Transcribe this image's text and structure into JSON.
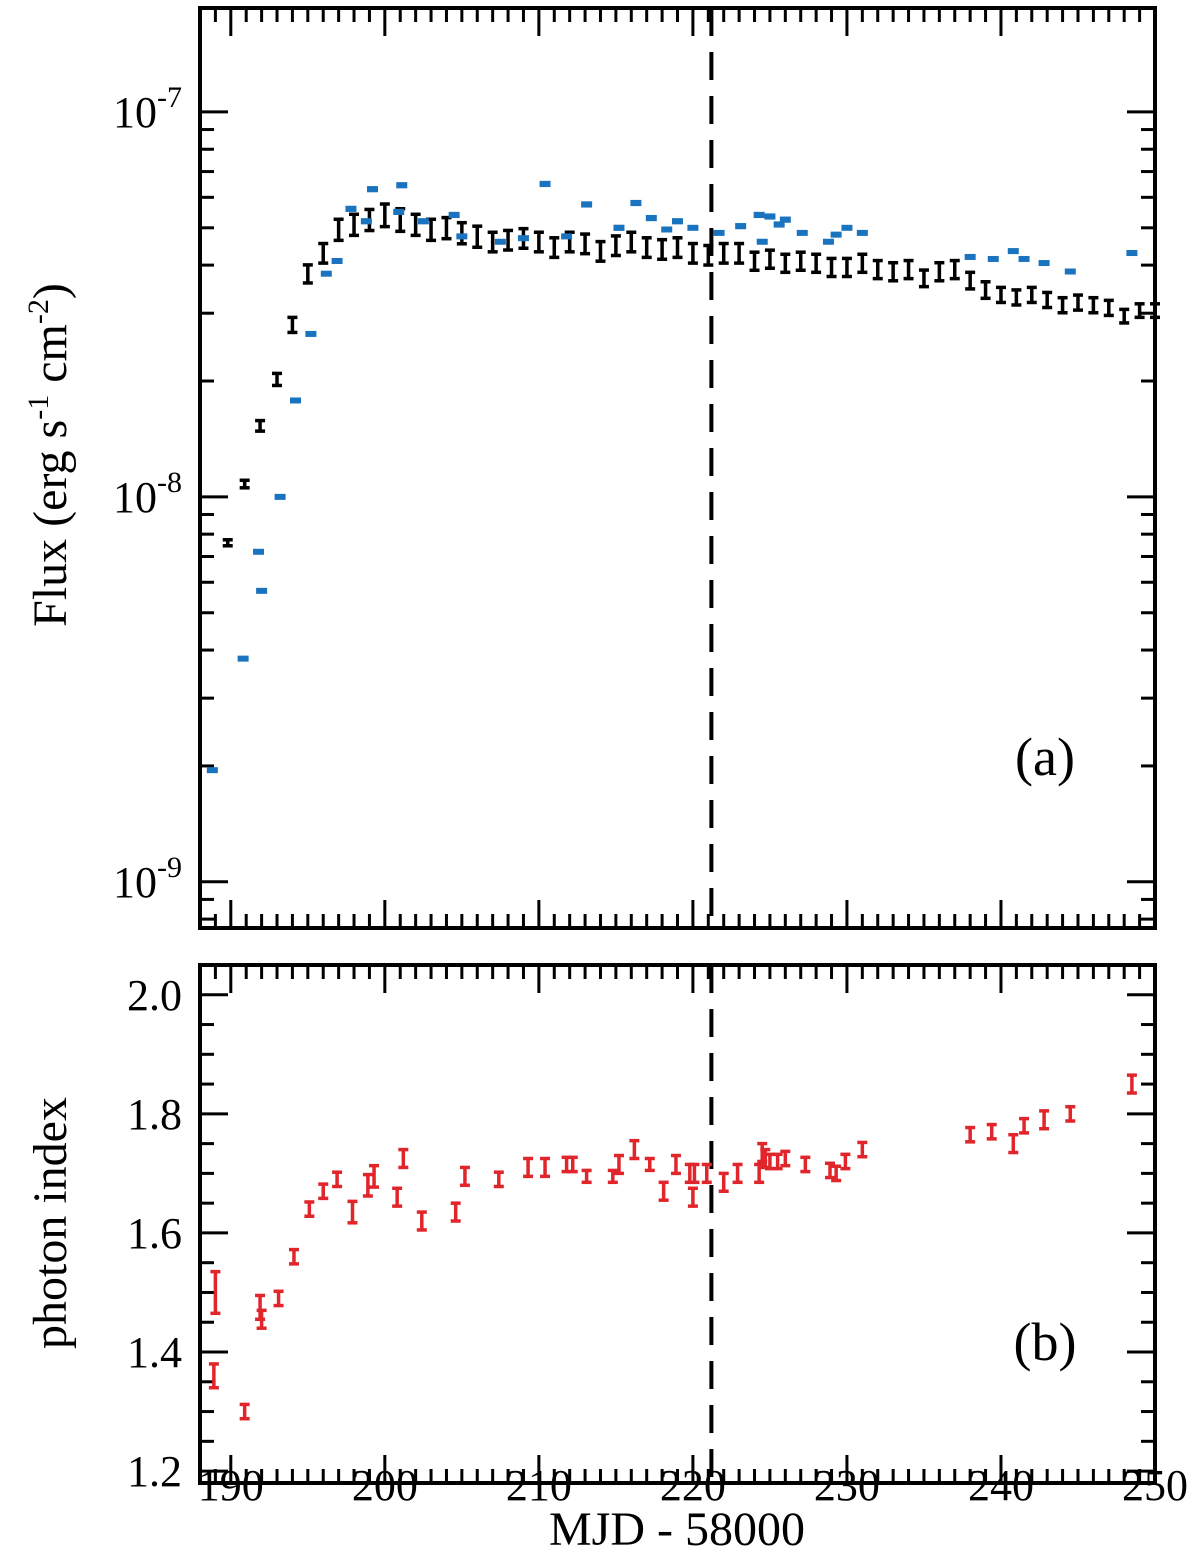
{
  "chart_data": [
    {
      "type": "scatter",
      "panel_label": "(a)",
      "ylabel": {
        "prefix": "Flux (erg s",
        "exp1": "-1",
        "mid": " cm",
        "exp2": "-2",
        "suffix": ")"
      },
      "yscale": "log",
      "xlim": [
        188,
        250
      ],
      "ylim_exp": [
        -9.12,
        -6.73
      ],
      "yticks": [
        {
          "exp": -9,
          "base": "10",
          "sup": "-9"
        },
        {
          "exp": -8,
          "base": "10",
          "sup": "-8"
        },
        {
          "exp": -7,
          "base": "10",
          "sup": "-7"
        }
      ],
      "vline_x": 221.2,
      "series": [
        {
          "name": "black",
          "color": "#000000",
          "points": [
            [
              189.8,
              7.6e-09,
              0.4
            ],
            [
              190.9,
              1.08e-08,
              0.5
            ],
            [
              191.9,
              1.53e-08,
              0.7
            ],
            [
              193.0,
              2.02e-08,
              0.8
            ],
            [
              194.0,
              2.8e-08,
              1.0
            ],
            [
              195.0,
              3.8e-08,
              1.2
            ],
            [
              196.0,
              4.3e-08,
              1.3
            ],
            [
              197.0,
              4.95e-08,
              1.4
            ],
            [
              198.0,
              5.1e-08,
              1.4
            ],
            [
              199.0,
              5.25e-08,
              1.4
            ],
            [
              200.0,
              5.4e-08,
              1.5
            ],
            [
              201.0,
              5.25e-08,
              1.5
            ],
            [
              202.0,
              5.1e-08,
              1.4
            ],
            [
              203.0,
              4.95e-08,
              1.4
            ],
            [
              204.0,
              5e-08,
              1.4
            ],
            [
              205.0,
              4.85e-08,
              1.4
            ],
            [
              206.0,
              4.75e-08,
              1.4
            ],
            [
              207.0,
              4.6e-08,
              1.3
            ],
            [
              208.0,
              4.65e-08,
              1.3
            ],
            [
              209.0,
              4.7e-08,
              1.3
            ],
            [
              210.0,
              4.6e-08,
              1.3
            ],
            [
              211.0,
              4.45e-08,
              1.3
            ],
            [
              212.0,
              4.6e-08,
              1.3
            ],
            [
              213.0,
              4.55e-08,
              1.3
            ],
            [
              214.0,
              4.35e-08,
              1.3
            ],
            [
              215.0,
              4.5e-08,
              1.3
            ],
            [
              216.0,
              4.6e-08,
              1.3
            ],
            [
              217.0,
              4.45e-08,
              1.3
            ],
            [
              218.0,
              4.4e-08,
              1.3
            ],
            [
              219.0,
              4.45e-08,
              1.3
            ],
            [
              220.0,
              4.3e-08,
              1.3
            ],
            [
              221.0,
              4.25e-08,
              1.3
            ],
            [
              222.0,
              4.3e-08,
              1.3
            ],
            [
              223.0,
              4.3e-08,
              1.3
            ],
            [
              224.0,
              4.1e-08,
              1.2
            ],
            [
              225.0,
              4.15e-08,
              1.2
            ],
            [
              226.0,
              4.05e-08,
              1.2
            ],
            [
              227.0,
              4.1e-08,
              1.2
            ],
            [
              228.0,
              4.05e-08,
              1.2
            ],
            [
              229.0,
              3.95e-08,
              1.2
            ],
            [
              230.0,
              3.95e-08,
              1.2
            ],
            [
              231.0,
              4.05e-08,
              1.2
            ],
            [
              232.0,
              3.9e-08,
              1.2
            ],
            [
              233.0,
              3.85e-08,
              1.2
            ],
            [
              234.0,
              3.9e-08,
              1.2
            ],
            [
              235.0,
              3.7e-08,
              1.1
            ],
            [
              236.0,
              3.85e-08,
              1.2
            ],
            [
              237.0,
              3.9e-08,
              1.2
            ],
            [
              238.0,
              3.65e-08,
              1.1
            ],
            [
              239.0,
              3.45e-08,
              1.1
            ],
            [
              240.0,
              3.35e-08,
              1.0
            ],
            [
              241.0,
              3.3e-08,
              1.0
            ],
            [
              242.0,
              3.35e-08,
              1.0
            ],
            [
              243.0,
              3.25e-08,
              1.0
            ],
            [
              244.0,
              3.15e-08,
              1.0
            ],
            [
              245.0,
              3.2e-08,
              1.0
            ],
            [
              246.0,
              3.15e-08,
              1.0
            ],
            [
              247.0,
              3.1e-08,
              1.0
            ],
            [
              248.0,
              2.95e-08,
              0.9
            ],
            [
              249.0,
              3.05e-08,
              0.9
            ],
            [
              250.0,
              3.05e-08,
              0.9
            ]
          ]
        },
        {
          "name": "blue",
          "color": "#1a73bf",
          "points": [
            [
              188.8,
              1.95e-09,
              0.05
            ],
            [
              190.8,
              3.8e-09,
              0.04
            ],
            [
              191.8,
              7.2e-09,
              0.07
            ],
            [
              192.0,
              5.7e-09,
              0.15
            ],
            [
              193.2,
              1e-08,
              0.08
            ],
            [
              194.2,
              1.78e-08,
              0.15
            ],
            [
              195.2,
              2.65e-08,
              0.2
            ],
            [
              196.2,
              3.8e-08,
              0.3
            ],
            [
              196.9,
              4.1e-08,
              0.3
            ],
            [
              197.8,
              5.6e-08,
              0.4
            ],
            [
              198.8,
              5.2e-08,
              0.4
            ],
            [
              199.2,
              6.3e-08,
              0.4
            ],
            [
              200.9,
              5.5e-08,
              0.4
            ],
            [
              201.1,
              6.45e-08,
              0.4
            ],
            [
              202.5,
              5.2e-08,
              0.4
            ],
            [
              204.5,
              5.4e-08,
              0.4
            ],
            [
              205.0,
              4.75e-08,
              0.35
            ],
            [
              207.5,
              4.6e-08,
              0.35
            ],
            [
              209.0,
              4.7e-08,
              0.35
            ],
            [
              210.4,
              6.5e-08,
              0.4
            ],
            [
              211.8,
              4.75e-08,
              0.35
            ],
            [
              213.1,
              5.75e-08,
              0.4
            ],
            [
              215.2,
              5e-08,
              0.4
            ],
            [
              216.3,
              5.8e-08,
              0.4
            ],
            [
              217.3,
              5.3e-08,
              0.4
            ],
            [
              218.3,
              4.95e-08,
              0.35
            ],
            [
              219.0,
              5.2e-08,
              0.4
            ],
            [
              220.0,
              5e-08,
              0.35
            ],
            [
              221.7,
              4.85e-08,
              0.35
            ],
            [
              223.1,
              5.05e-08,
              0.4
            ],
            [
              224.3,
              5.4e-08,
              0.4
            ],
            [
              224.5,
              4.6e-08,
              0.35
            ],
            [
              225.0,
              5.35e-08,
              0.4
            ],
            [
              225.6,
              5.1e-08,
              0.4
            ],
            [
              226.0,
              5.25e-08,
              0.4
            ],
            [
              227.1,
              4.85e-08,
              0.35
            ],
            [
              228.8,
              4.6e-08,
              0.35
            ],
            [
              229.3,
              4.8e-08,
              0.35
            ],
            [
              230.0,
              5e-08,
              0.35
            ],
            [
              231.0,
              4.85e-08,
              0.35
            ],
            [
              238.0,
              4.2e-08,
              0.3
            ],
            [
              239.5,
              4.15e-08,
              0.3
            ],
            [
              240.8,
              4.35e-08,
              0.3
            ],
            [
              241.5,
              4.15e-08,
              0.3
            ],
            [
              242.8,
              4.05e-08,
              0.3
            ],
            [
              244.5,
              3.85e-08,
              0.3
            ],
            [
              248.5,
              4.3e-08,
              0.3
            ]
          ]
        }
      ]
    },
    {
      "type": "scatter",
      "panel_label": "(b)",
      "ylabel": "photon index",
      "xlabel": "MJD - 58000",
      "xlim": [
        188,
        250
      ],
      "ylim": [
        1.18,
        2.05
      ],
      "xticks": [
        "190",
        "200",
        "210",
        "220",
        "230",
        "240",
        "250"
      ],
      "xtick_values": [
        190,
        200,
        210,
        220,
        230,
        240,
        250
      ],
      "yticks": [
        "1.2",
        "1.4",
        "1.6",
        "1.8",
        "2.0"
      ],
      "ytick_values": [
        1.2,
        1.4,
        1.6,
        1.8,
        2.0
      ],
      "vline_x": 221.2,
      "series": [
        {
          "name": "red",
          "color": "#e0252b",
          "points": [
            [
              188.9,
              1.36,
              0.02
            ],
            [
              189.0,
              1.5,
              0.035
            ],
            [
              190.9,
              1.3,
              0.012
            ],
            [
              191.9,
              1.475,
              0.02
            ],
            [
              192.0,
              1.455,
              0.015
            ],
            [
              193.1,
              1.49,
              0.012
            ],
            [
              194.1,
              1.56,
              0.012
            ],
            [
              195.1,
              1.64,
              0.012
            ],
            [
              196.0,
              1.67,
              0.012
            ],
            [
              196.9,
              1.69,
              0.012
            ],
            [
              197.9,
              1.635,
              0.018
            ],
            [
              198.9,
              1.68,
              0.018
            ],
            [
              199.3,
              1.695,
              0.018
            ],
            [
              200.8,
              1.66,
              0.015
            ],
            [
              201.2,
              1.725,
              0.015
            ],
            [
              202.4,
              1.62,
              0.015
            ],
            [
              204.6,
              1.635,
              0.015
            ],
            [
              205.2,
              1.695,
              0.015
            ],
            [
              207.4,
              1.69,
              0.012
            ],
            [
              209.3,
              1.71,
              0.015
            ],
            [
              210.4,
              1.71,
              0.015
            ],
            [
              211.8,
              1.715,
              0.012
            ],
            [
              212.2,
              1.715,
              0.012
            ],
            [
              213.1,
              1.695,
              0.01
            ],
            [
              214.8,
              1.695,
              0.01
            ],
            [
              215.2,
              1.715,
              0.015
            ],
            [
              216.2,
              1.74,
              0.015
            ],
            [
              217.2,
              1.715,
              0.01
            ],
            [
              218.1,
              1.67,
              0.015
            ],
            [
              218.9,
              1.715,
              0.015
            ],
            [
              219.8,
              1.7,
              0.015
            ],
            [
              220.0,
              1.66,
              0.015
            ],
            [
              220.1,
              1.7,
              0.015
            ],
            [
              220.9,
              1.7,
              0.015
            ],
            [
              222.0,
              1.685,
              0.015
            ],
            [
              222.9,
              1.7,
              0.015
            ],
            [
              224.3,
              1.7,
              0.015
            ],
            [
              224.5,
              1.735,
              0.015
            ],
            [
              224.7,
              1.725,
              0.015
            ],
            [
              225.0,
              1.72,
              0.012
            ],
            [
              225.5,
              1.72,
              0.012
            ],
            [
              226.0,
              1.725,
              0.012
            ],
            [
              227.3,
              1.715,
              0.012
            ],
            [
              228.9,
              1.705,
              0.012
            ],
            [
              229.3,
              1.7,
              0.012
            ],
            [
              229.9,
              1.72,
              0.012
            ],
            [
              231.0,
              1.74,
              0.012
            ],
            [
              238.0,
              1.765,
              0.012
            ],
            [
              239.4,
              1.77,
              0.012
            ],
            [
              240.8,
              1.75,
              0.015
            ],
            [
              241.5,
              1.78,
              0.012
            ],
            [
              242.8,
              1.79,
              0.015
            ],
            [
              244.5,
              1.8,
              0.012
            ],
            [
              248.5,
              1.85,
              0.015
            ]
          ]
        }
      ]
    }
  ]
}
